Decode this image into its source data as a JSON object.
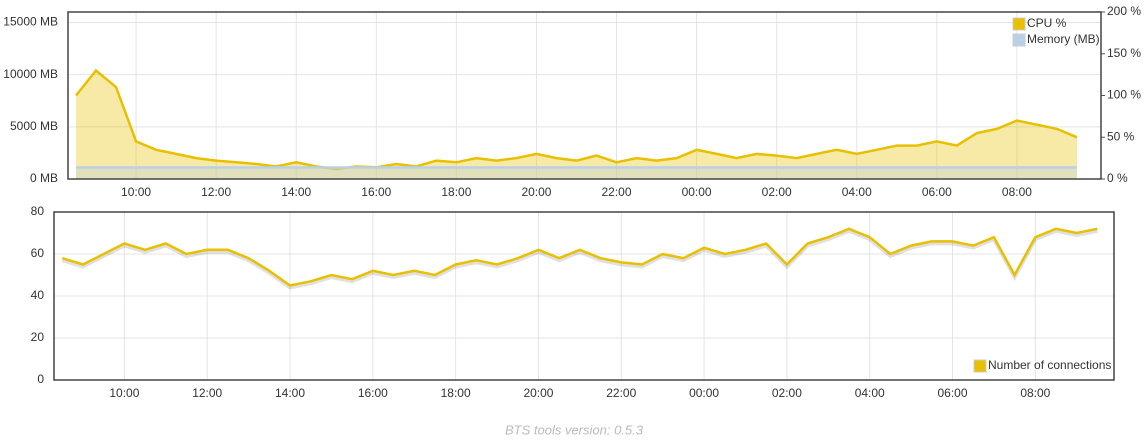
{
  "chart_data": [
    {
      "type": "area",
      "x": [
        8.5,
        9,
        9.5,
        10,
        10.5,
        11,
        11.5,
        12,
        12.5,
        13,
        13.5,
        14,
        14.5,
        15,
        15.5,
        16,
        16.5,
        17,
        17.5,
        18,
        18.5,
        19,
        19.5,
        20,
        20.5,
        21,
        21.5,
        22,
        22.5,
        23,
        23.5,
        24,
        24.5,
        25,
        25.5,
        26,
        26.5,
        27,
        27.5,
        28,
        28.5,
        29,
        29.5,
        30,
        30.5,
        31,
        31.5,
        32,
        32.5,
        33,
        33.5
      ],
      "series": [
        {
          "name": "CPU %",
          "color": "#e8c000",
          "axis": "y2",
          "values": [
            100,
            130,
            110,
            45,
            35,
            30,
            25,
            22,
            20,
            18,
            15,
            20,
            15,
            12,
            15,
            14,
            18,
            15,
            22,
            20,
            25,
            22,
            25,
            30,
            25,
            22,
            28,
            20,
            25,
            22,
            25,
            35,
            30,
            25,
            30,
            28,
            25,
            30,
            35,
            30,
            35,
            40,
            40,
            45,
            40,
            55,
            60,
            70,
            65,
            60,
            50
          ]
        },
        {
          "name": "Memory (MB)",
          "color": "#b8d0e8",
          "values": [
            1100,
            1100,
            1100,
            1100,
            1100,
            1100,
            1100,
            1100,
            1100,
            1100,
            1100,
            1100,
            1100,
            1100,
            1100,
            1100,
            1100,
            1100,
            1100,
            1100,
            1100,
            1100,
            1100,
            1100,
            1100,
            1100,
            1100,
            1100,
            1100,
            1100,
            1100,
            1100,
            1100,
            1100,
            1100,
            1100,
            1100,
            1100,
            1100,
            1100,
            1100,
            1100,
            1100,
            1100,
            1100,
            1100,
            1100,
            1100,
            1100,
            1100,
            1100
          ]
        }
      ],
      "xlim": [
        8.3,
        34.1
      ],
      "xticks": [
        {
          "value": 10,
          "label": "10:00"
        },
        {
          "value": 12,
          "label": "12:00"
        },
        {
          "value": 14,
          "label": "14:00"
        },
        {
          "value": 16,
          "label": "16:00"
        },
        {
          "value": 18,
          "label": "18:00"
        },
        {
          "value": 20,
          "label": "20:00"
        },
        {
          "value": 22,
          "label": "22:00"
        },
        {
          "value": 24,
          "label": "00:00"
        },
        {
          "value": 26,
          "label": "02:00"
        },
        {
          "value": 28,
          "label": "04:00"
        },
        {
          "value": 30,
          "label": "06:00"
        },
        {
          "value": 32,
          "label": "08:00"
        }
      ],
      "ylim": [
        0,
        16000
      ],
      "yticks": [
        {
          "value": 0,
          "label": "0 MB"
        },
        {
          "value": 5000,
          "label": "5000 MB"
        },
        {
          "value": 10000,
          "label": "10000 MB"
        },
        {
          "value": 15000,
          "label": "15000 MB"
        }
      ],
      "y2lim": [
        0,
        200
      ],
      "y2ticks": [
        {
          "value": 0,
          "label": "0 %"
        },
        {
          "value": 50,
          "label": "50 %"
        },
        {
          "value": 100,
          "label": "100 %"
        },
        {
          "value": 150,
          "label": "150 %"
        },
        {
          "value": 200,
          "label": "200 %"
        }
      ],
      "grid": true,
      "legend": "top-right"
    },
    {
      "type": "line",
      "x": [
        8.5,
        9,
        9.5,
        10,
        10.5,
        11,
        11.5,
        12,
        12.5,
        13,
        13.5,
        14,
        14.5,
        15,
        15.5,
        16,
        16.5,
        17,
        17.5,
        18,
        18.5,
        19,
        19.5,
        20,
        20.5,
        21,
        21.5,
        22,
        22.5,
        23,
        23.5,
        24,
        24.5,
        25,
        25.5,
        26,
        26.5,
        27,
        27.5,
        28,
        28.5,
        29,
        29.5,
        30,
        30.5,
        31,
        31.5,
        32,
        32.5,
        33,
        33.5
      ],
      "series": [
        {
          "name": "Number of connections",
          "color": "#e8c000",
          "values": [
            58,
            55,
            60,
            65,
            62,
            65,
            60,
            62,
            62,
            58,
            52,
            45,
            47,
            50,
            48,
            52,
            50,
            52,
            50,
            55,
            57,
            55,
            58,
            62,
            58,
            62,
            58,
            56,
            55,
            60,
            58,
            63,
            60,
            62,
            65,
            55,
            65,
            68,
            72,
            68,
            60,
            64,
            66,
            66,
            64,
            68,
            50,
            68,
            72,
            70,
            72
          ]
        }
      ],
      "xlim": [
        8.3,
        33.9
      ],
      "xticks": [
        {
          "value": 10,
          "label": "10:00"
        },
        {
          "value": 12,
          "label": "12:00"
        },
        {
          "value": 14,
          "label": "14:00"
        },
        {
          "value": 16,
          "label": "16:00"
        },
        {
          "value": 18,
          "label": "18:00"
        },
        {
          "value": 20,
          "label": "20:00"
        },
        {
          "value": 22,
          "label": "22:00"
        },
        {
          "value": 24,
          "label": "00:00"
        },
        {
          "value": 26,
          "label": "02:00"
        },
        {
          "value": 28,
          "label": "04:00"
        },
        {
          "value": 30,
          "label": "06:00"
        },
        {
          "value": 32,
          "label": "08:00"
        }
      ],
      "ylim": [
        0,
        80
      ],
      "yticks": [
        0,
        20,
        40,
        60,
        80
      ],
      "grid": true,
      "legend": "bottom-right"
    }
  ],
  "footer": "BTS tools version: 0.5.3"
}
